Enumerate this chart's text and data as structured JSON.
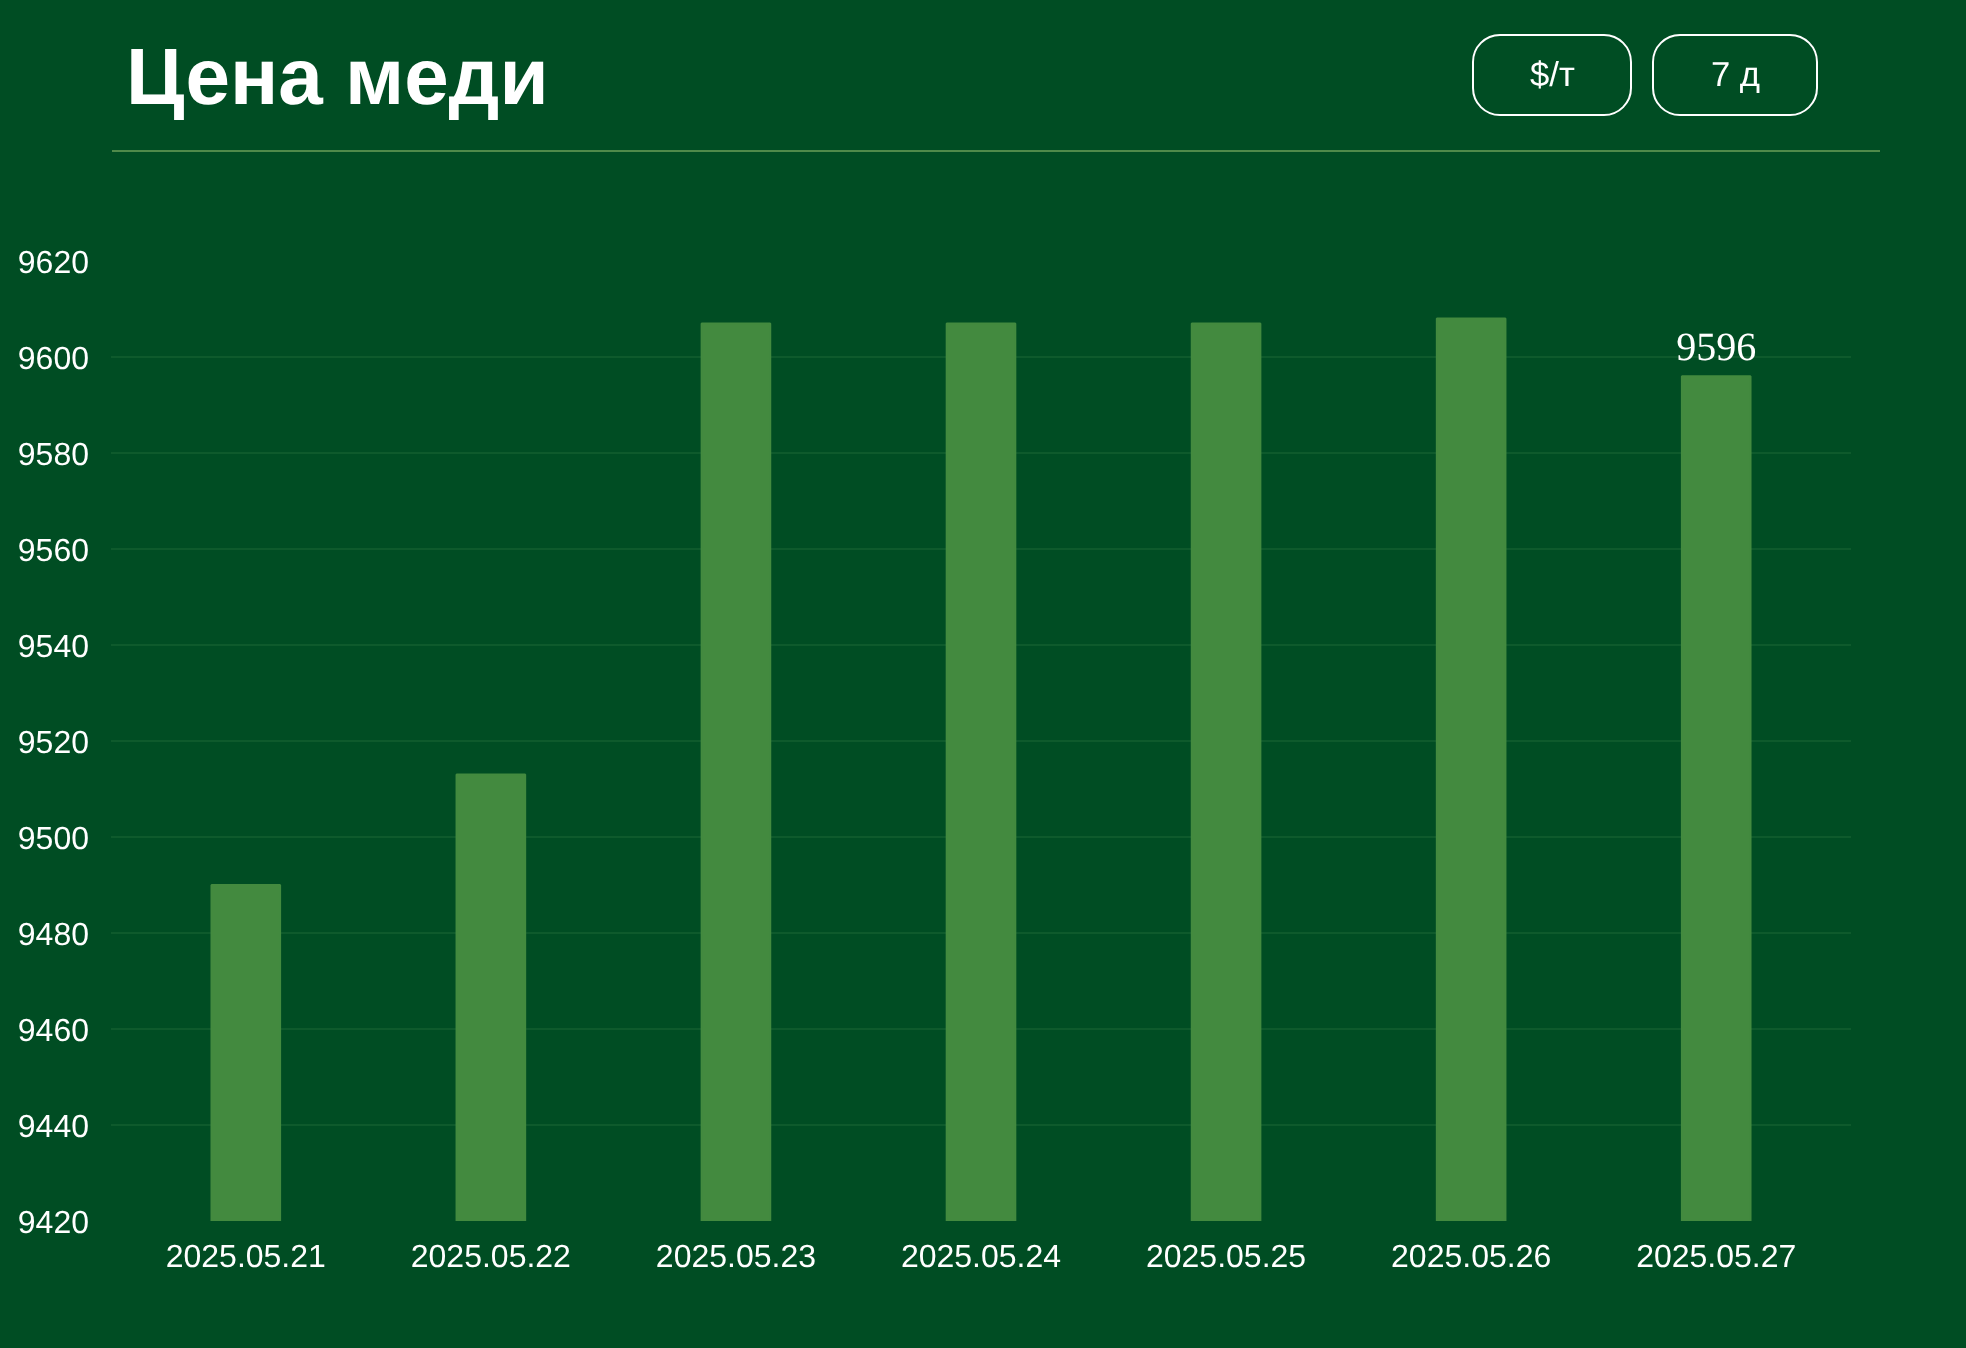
{
  "chart_data": {
    "type": "bar",
    "title": "Цена меди",
    "annotations": [
      "$/т",
      "7 д"
    ],
    "categories": [
      "2025.05.21",
      "2025.05.22",
      "2025.05.23",
      "2025.05.24",
      "2025.05.25",
      "2025.05.26",
      "2025.05.27"
    ],
    "values": [
      9490,
      9513,
      9607,
      9607,
      9607,
      9608,
      9596
    ],
    "value_labels": [
      null,
      null,
      null,
      null,
      null,
      null,
      "9596"
    ],
    "color": "#438a3f",
    "ylim": [
      9420,
      9620
    ],
    "yticks": [
      9420,
      9440,
      9460,
      9480,
      9500,
      9520,
      9540,
      9560,
      9580,
      9600,
      9620
    ],
    "grid": "y"
  }
}
